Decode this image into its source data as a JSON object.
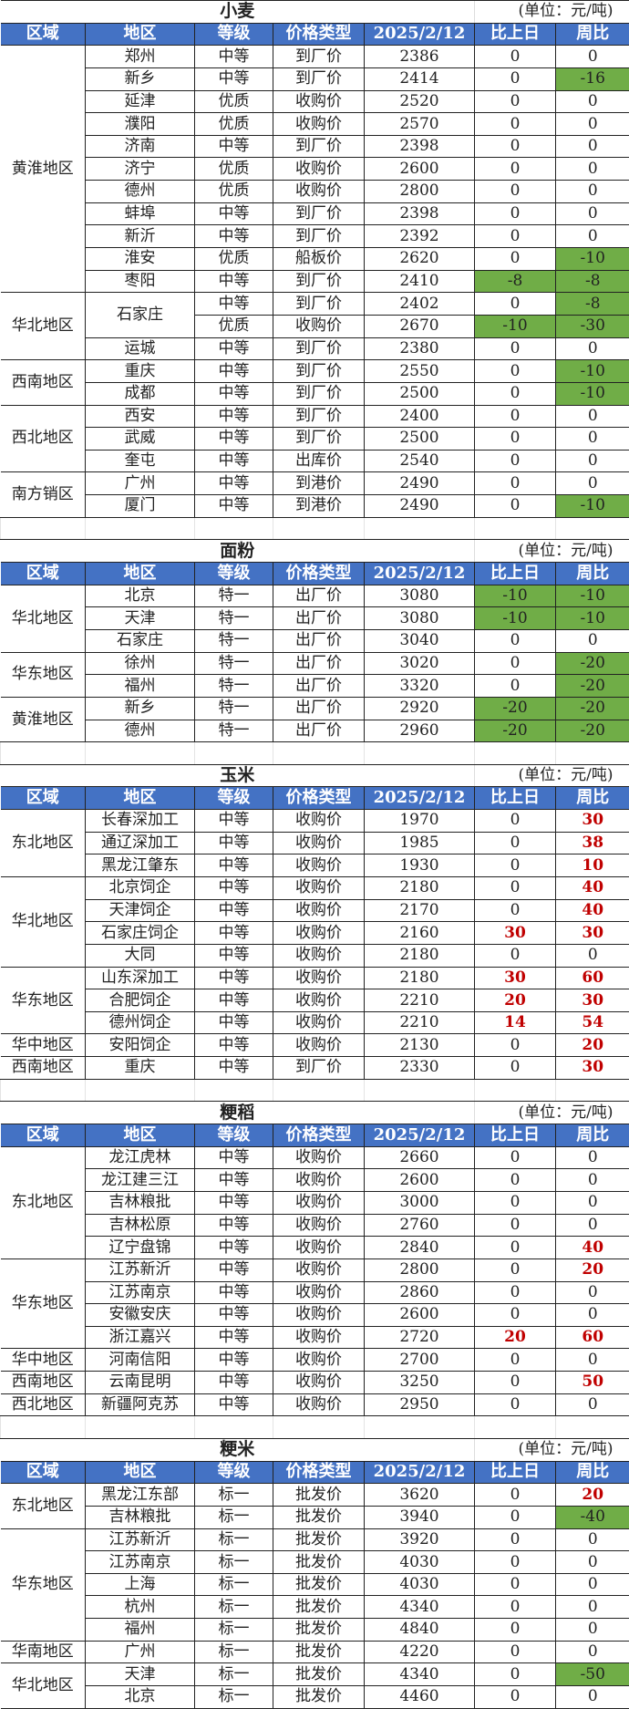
{
  "headers": [
    "区域",
    "地区",
    "等级",
    "价格类型",
    "2025/2/12",
    "比上日",
    "周比"
  ],
  "unit": "(单位：元/吨)",
  "sections": [
    {
      "title": "小麦",
      "groups": [
        {
          "region": "黄淮地区",
          "rows": [
            {
              "area": "郑州",
              "grade": "中等",
              "type": "到厂价",
              "price": "2386",
              "day": "0",
              "week": "0"
            },
            {
              "area": "新乡",
              "grade": "中等",
              "type": "到厂价",
              "price": "2414",
              "day": "0",
              "week": "-16"
            },
            {
              "area": "延津",
              "grade": "优质",
              "type": "收购价",
              "price": "2520",
              "day": "0",
              "week": "0"
            },
            {
              "area": "濮阳",
              "grade": "优质",
              "type": "收购价",
              "price": "2570",
              "day": "0",
              "week": "0"
            },
            {
              "area": "济南",
              "grade": "中等",
              "type": "到厂价",
              "price": "2398",
              "day": "0",
              "week": "0"
            },
            {
              "area": "济宁",
              "grade": "优质",
              "type": "收购价",
              "price": "2600",
              "day": "0",
              "week": "0"
            },
            {
              "area": "德州",
              "grade": "优质",
              "type": "收购价",
              "price": "2800",
              "day": "0",
              "week": "0"
            },
            {
              "area": "蚌埠",
              "grade": "中等",
              "type": "到厂价",
              "price": "2398",
              "day": "0",
              "week": "0"
            },
            {
              "area": "新沂",
              "grade": "中等",
              "type": "到厂价",
              "price": "2392",
              "day": "0",
              "week": "0"
            },
            {
              "area": "淮安",
              "grade": "优质",
              "type": "船板价",
              "price": "2620",
              "day": "0",
              "week": "-10"
            },
            {
              "area": "枣阳",
              "grade": "中等",
              "type": "到厂价",
              "price": "2410",
              "day": "-8",
              "week": "-8"
            }
          ]
        },
        {
          "region": "华北地区",
          "rows": [
            {
              "area": "石家庄",
              "area_merge": 2,
              "grade": "中等",
              "type": "到厂价",
              "price": "2402",
              "day": "0",
              "week": "-8"
            },
            {
              "area": null,
              "grade": "优质",
              "type": "收购价",
              "price": "2670",
              "day": "-10",
              "week": "-30"
            },
            {
              "area": "运城",
              "grade": "中等",
              "type": "到厂价",
              "price": "2380",
              "day": "0",
              "week": "0"
            }
          ]
        },
        {
          "region": "西南地区",
          "rows": [
            {
              "area": "重庆",
              "grade": "中等",
              "type": "到厂价",
              "price": "2550",
              "day": "0",
              "week": "-10"
            },
            {
              "area": "成都",
              "grade": "中等",
              "type": "到厂价",
              "price": "2500",
              "day": "0",
              "week": "-10"
            }
          ]
        },
        {
          "region": "西北地区",
          "rows": [
            {
              "area": "西安",
              "grade": "中等",
              "type": "到厂价",
              "price": "2400",
              "day": "0",
              "week": "0"
            },
            {
              "area": "武威",
              "grade": "中等",
              "type": "到厂价",
              "price": "2500",
              "day": "0",
              "week": "0"
            },
            {
              "area": "奎屯",
              "grade": "中等",
              "type": "出库价",
              "price": "2540",
              "day": "0",
              "week": "0"
            }
          ]
        },
        {
          "region": "南方销区",
          "rows": [
            {
              "area": "广州",
              "grade": "中等",
              "type": "到港价",
              "price": "2490",
              "day": "0",
              "week": "0"
            },
            {
              "area": "厦门",
              "grade": "中等",
              "type": "到港价",
              "price": "2490",
              "day": "0",
              "week": "-10"
            }
          ]
        }
      ]
    },
    {
      "title": "面粉",
      "groups": [
        {
          "region": "华北地区",
          "rows": [
            {
              "area": "北京",
              "grade": "特一",
              "type": "出厂价",
              "price": "3080",
              "day": "-10",
              "week": "-10"
            },
            {
              "area": "天津",
              "grade": "特一",
              "type": "出厂价",
              "price": "3080",
              "day": "-10",
              "week": "-10"
            },
            {
              "area": "石家庄",
              "grade": "特一",
              "type": "出厂价",
              "price": "3040",
              "day": "0",
              "week": "0"
            }
          ]
        },
        {
          "region": "华东地区",
          "rows": [
            {
              "area": "徐州",
              "grade": "特一",
              "type": "出厂价",
              "price": "3020",
              "day": "0",
              "week": "-20"
            },
            {
              "area": "福州",
              "grade": "特一",
              "type": "出厂价",
              "price": "3320",
              "day": "0",
              "week": "-20"
            }
          ]
        },
        {
          "region": "黄淮地区",
          "rows": [
            {
              "area": "新乡",
              "grade": "特一",
              "type": "出厂价",
              "price": "2920",
              "day": "-20",
              "week": "-20"
            },
            {
              "area": "德州",
              "grade": "特一",
              "type": "出厂价",
              "price": "2960",
              "day": "-20",
              "week": "-20"
            }
          ]
        }
      ]
    },
    {
      "title": "玉米",
      "groups": [
        {
          "region": "东北地区",
          "rows": [
            {
              "area": "长春深加工",
              "grade": "中等",
              "type": "收购价",
              "price": "1970",
              "day": "0",
              "week": "30"
            },
            {
              "area": "通辽深加工",
              "grade": "中等",
              "type": "收购价",
              "price": "1985",
              "day": "0",
              "week": "38"
            },
            {
              "area": "黑龙江肇东",
              "grade": "中等",
              "type": "收购价",
              "price": "1930",
              "day": "0",
              "week": "10"
            }
          ]
        },
        {
          "region": "华北地区",
          "rows": [
            {
              "area": "北京饲企",
              "grade": "中等",
              "type": "收购价",
              "price": "2180",
              "day": "0",
              "week": "40"
            },
            {
              "area": "天津饲企",
              "grade": "中等",
              "type": "收购价",
              "price": "2170",
              "day": "0",
              "week": "40"
            },
            {
              "area": "石家庄饲企",
              "grade": "中等",
              "type": "收购价",
              "price": "2160",
              "day": "30",
              "week": "30"
            },
            {
              "area": "大同",
              "grade": "中等",
              "type": "收购价",
              "price": "2180",
              "day": "0",
              "week": "0"
            }
          ]
        },
        {
          "region": "华东地区",
          "rows": [
            {
              "area": "山东深加工",
              "grade": "中等",
              "type": "收购价",
              "price": "2180",
              "day": "30",
              "week": "60"
            },
            {
              "area": "合肥饲企",
              "grade": "中等",
              "type": "收购价",
              "price": "2210",
              "day": "20",
              "week": "30"
            },
            {
              "area": "德州饲企",
              "grade": "中等",
              "type": "收购价",
              "price": "2210",
              "day": "14",
              "week": "54"
            }
          ]
        },
        {
          "region": "华中地区",
          "rows": [
            {
              "area": "安阳饲企",
              "grade": "中等",
              "type": "收购价",
              "price": "2130",
              "day": "0",
              "week": "20"
            }
          ]
        },
        {
          "region": "西南地区",
          "rows": [
            {
              "area": "重庆",
              "grade": "中等",
              "type": "到厂价",
              "price": "2330",
              "day": "0",
              "week": "30"
            }
          ]
        }
      ]
    },
    {
      "title": "粳稻",
      "groups": [
        {
          "region": "东北地区",
          "rows": [
            {
              "area": "龙江虎林",
              "grade": "中等",
              "type": "收购价",
              "price": "2660",
              "day": "0",
              "week": "0"
            },
            {
              "area": "龙江建三江",
              "grade": "中等",
              "type": "收购价",
              "price": "2600",
              "day": "0",
              "week": "0"
            },
            {
              "area": "吉林粮批",
              "grade": "中等",
              "type": "收购价",
              "price": "3000",
              "day": "0",
              "week": "0"
            },
            {
              "area": "吉林松原",
              "grade": "中等",
              "type": "收购价",
              "price": "2760",
              "day": "0",
              "week": "0"
            },
            {
              "area": "辽宁盘锦",
              "grade": "中等",
              "type": "收购价",
              "price": "2840",
              "day": "0",
              "week": "40"
            }
          ]
        },
        {
          "region": "华东地区",
          "rows": [
            {
              "area": "江苏新沂",
              "grade": "中等",
              "type": "收购价",
              "price": "2800",
              "day": "0",
              "week": "20"
            },
            {
              "area": "江苏南京",
              "grade": "中等",
              "type": "收购价",
              "price": "2860",
              "day": "0",
              "week": "0"
            },
            {
              "area": "安徽安庆",
              "grade": "中等",
              "type": "收购价",
              "price": "2600",
              "day": "0",
              "week": "0"
            },
            {
              "area": "浙江嘉兴",
              "grade": "中等",
              "type": "收购价",
              "price": "2720",
              "day": "20",
              "week": "60"
            }
          ]
        },
        {
          "region": "华中地区",
          "rows": [
            {
              "area": "河南信阳",
              "grade": "中等",
              "type": "收购价",
              "price": "2700",
              "day": "0",
              "week": "0"
            }
          ]
        },
        {
          "region": "西南地区",
          "rows": [
            {
              "area": "云南昆明",
              "grade": "中等",
              "type": "收购价",
              "price": "3250",
              "day": "0",
              "week": "50"
            }
          ]
        },
        {
          "region": "西北地区",
          "rows": [
            {
              "area": "新疆阿克苏",
              "grade": "中等",
              "type": "收购价",
              "price": "2950",
              "day": "0",
              "week": "0"
            }
          ]
        }
      ]
    },
    {
      "title": "粳米",
      "groups": [
        {
          "region": "东北地区",
          "rows": [
            {
              "area": "黑龙江东部",
              "grade": "标一",
              "type": "批发价",
              "price": "3620",
              "day": "0",
              "week": "20"
            },
            {
              "area": "吉林粮批",
              "grade": "标一",
              "type": "批发价",
              "price": "3940",
              "day": "0",
              "week": "-40"
            }
          ]
        },
        {
          "region": "华东地区",
          "rows": [
            {
              "area": "江苏新沂",
              "grade": "标一",
              "type": "批发价",
              "price": "3920",
              "day": "0",
              "week": "0"
            },
            {
              "area": "江苏南京",
              "grade": "标一",
              "type": "批发价",
              "price": "4030",
              "day": "0",
              "week": "0"
            },
            {
              "area": "上海",
              "grade": "标一",
              "type": "批发价",
              "price": "4030",
              "day": "0",
              "week": "0"
            },
            {
              "area": "杭州",
              "grade": "标一",
              "type": "批发价",
              "price": "4340",
              "day": "0",
              "week": "0"
            },
            {
              "area": "福州",
              "grade": "标一",
              "type": "批发价",
              "price": "4840",
              "day": "0",
              "week": "0"
            }
          ]
        },
        {
          "region": "华南地区",
          "rows": [
            {
              "area": "广州",
              "grade": "标一",
              "type": "批发价",
              "price": "4220",
              "day": "0",
              "week": "0"
            }
          ]
        },
        {
          "region": "华北地区",
          "rows": [
            {
              "area": "天津",
              "grade": "标一",
              "type": "批发价",
              "price": "4340",
              "day": "0",
              "week": "-50"
            },
            {
              "area": "北京",
              "grade": "标一",
              "type": "批发价",
              "price": "4460",
              "day": "0",
              "week": "0"
            }
          ]
        }
      ]
    }
  ],
  "colors": {
    "header_bg": "#4472C4",
    "decrease_bg": "#70AD47",
    "increase_text": "#C00000"
  }
}
